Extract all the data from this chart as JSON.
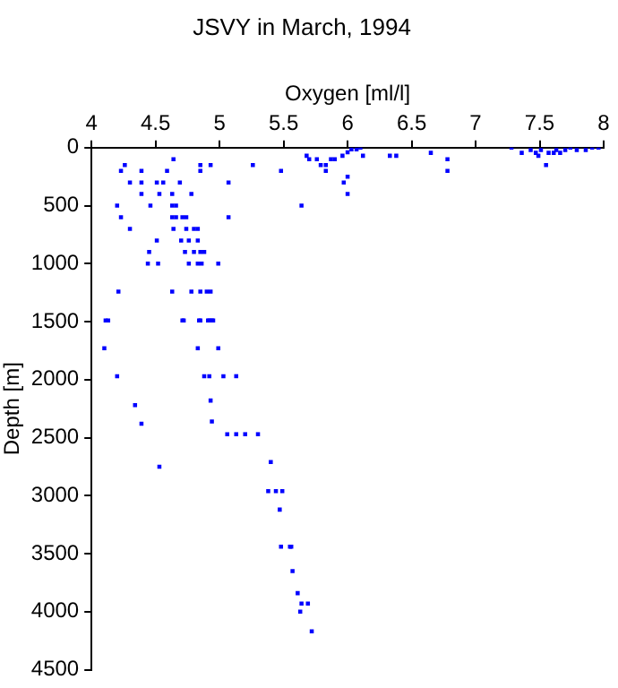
{
  "chart_data": {
    "type": "scatter",
    "title": "JSVY in March, 1994",
    "xlabel": "Oxygen [ml/l]",
    "ylabel": "Depth [m]",
    "xlim": [
      4,
      8
    ],
    "xticks": [
      4,
      4.5,
      5,
      5.5,
      6,
      6.5,
      7,
      7.5,
      8
    ],
    "ylim": [
      4500,
      0
    ],
    "yticks": [
      0,
      500,
      1000,
      1500,
      2000,
      2500,
      3000,
      3500,
      4000,
      4500
    ],
    "grid": false,
    "legend": false,
    "marker": "square",
    "series": [
      {
        "color": "#0000ff",
        "x": [
          4.11,
          4.2,
          4.21,
          4.23,
          4.23,
          4.26,
          4.3,
          4.3,
          4.39,
          4.39,
          4.39,
          4.46,
          4.45,
          4.44,
          4.51,
          4.52,
          4.53,
          4.51,
          4.56,
          4.59,
          4.63,
          4.64,
          4.63,
          4.66,
          4.63,
          4.66,
          4.64,
          4.63,
          4.69,
          4.7,
          4.71,
          4.74,
          4.73,
          4.76,
          4.76,
          4.72,
          4.74,
          4.78,
          4.78,
          4.8,
          4.83,
          4.8,
          4.83,
          4.85,
          4.88,
          4.83,
          4.86,
          4.85,
          4.85,
          4.85,
          4.9,
          4.93,
          4.92,
          4.94,
          4.85,
          4.93,
          4.99,
          5.07,
          5.07,
          5.26,
          5.48,
          5.64,
          5.68,
          5.7,
          5.76,
          5.79,
          5.83,
          5.83,
          5.87,
          5.9,
          5.96,
          5.97,
          6.0,
          6.0,
          6.0,
          6.03,
          6.07,
          6.12,
          6.1,
          6.33,
          6.38,
          6.65,
          6.78,
          6.78,
          7.28,
          7.36,
          7.43,
          7.47,
          7.49,
          7.51,
          7.55,
          7.57,
          7.61,
          7.63,
          7.66,
          7.7,
          7.74,
          7.79,
          7.86,
          7.91,
          7.96,
          4.13,
          4.71,
          4.84,
          4.91,
          4.95,
          4.1,
          4.83,
          4.99,
          4.2,
          4.88,
          4.92,
          5.03,
          5.13,
          4.34,
          4.39,
          4.93,
          4.94,
          5.06,
          5.13,
          5.2,
          5.3,
          4.53,
          5.4,
          5.38,
          5.44,
          5.49,
          5.47,
          5.48,
          5.55,
          5.56,
          5.57,
          5.61,
          5.64,
          5.69,
          5.63,
          5.72
        ],
        "values": [
          1490,
          500,
          1240,
          600,
          200,
          150,
          300,
          700,
          200,
          300,
          400,
          500,
          900,
          1000,
          800,
          1000,
          400,
          300,
          300,
          200,
          400,
          100,
          500,
          500,
          600,
          600,
          700,
          1240,
          300,
          800,
          600,
          600,
          900,
          800,
          1000,
          1490,
          700,
          400,
          1240,
          700,
          700,
          900,
          800,
          900,
          900,
          1000,
          1000,
          200,
          150,
          1240,
          1240,
          1240,
          1490,
          1490,
          1490,
          150,
          1000,
          300,
          600,
          150,
          200,
          500,
          70,
          100,
          100,
          150,
          150,
          200,
          100,
          100,
          70,
          300,
          250,
          40,
          400,
          15,
          15,
          70,
          0,
          70,
          70,
          45,
          100,
          200,
          0,
          45,
          20,
          45,
          70,
          20,
          150,
          45,
          45,
          20,
          45,
          20,
          0,
          20,
          20,
          0,
          0,
          1490,
          1490,
          1490,
          1490,
          1490,
          1730,
          1730,
          1730,
          1970,
          1970,
          1970,
          1970,
          1970,
          2220,
          2380,
          2180,
          2360,
          2470,
          2470,
          2470,
          2470,
          2750,
          2710,
          2960,
          2960,
          2960,
          3120,
          3440,
          3440,
          3440,
          3650,
          3840,
          3930,
          3930,
          4000,
          4170
        ]
      }
    ]
  }
}
